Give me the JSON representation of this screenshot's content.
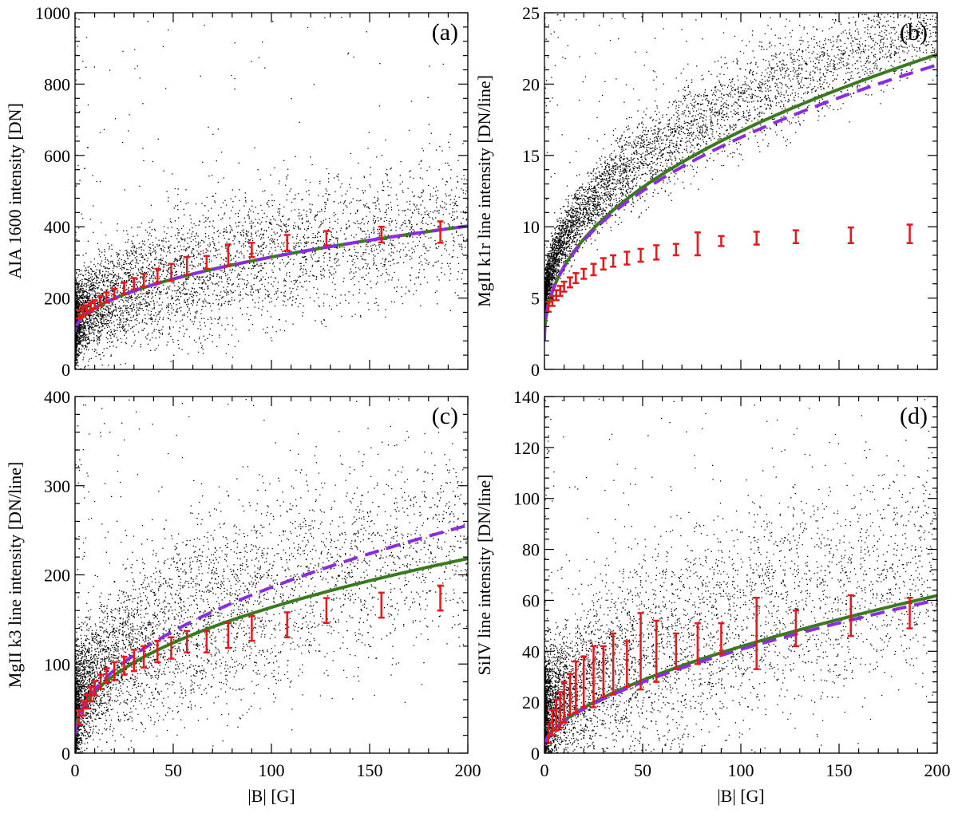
{
  "colors": {
    "points": "#000000",
    "fit_solid": "#3a7a1e",
    "fit_dashed": "#8b2be2",
    "errorbars": "#e8171b"
  },
  "chart_data": [
    {
      "panel": "(a)",
      "type": "scatter",
      "xlabel": "",
      "ylabel": "AIA 1600 intensity [DN]",
      "xlim": [
        0,
        200
      ],
      "ylim": [
        0,
        1000
      ],
      "xticks": [
        "0",
        "50",
        "100",
        "150",
        "200"
      ],
      "yticks": [
        "0",
        "200",
        "400",
        "600",
        "800",
        "1000"
      ],
      "scatter": {
        "y0": 115,
        "yspread": 140,
        "ymax": 1000
      },
      "fit_solid": {
        "a": 105,
        "b": 21,
        "p": 0.5
      },
      "fit_dashed": {
        "a": 105,
        "b": 21,
        "p": 0.5
      },
      "errorbars": [
        {
          "x": 2,
          "y": 155,
          "err": 12
        },
        {
          "x": 4,
          "y": 162,
          "err": 12
        },
        {
          "x": 6,
          "y": 168,
          "err": 12
        },
        {
          "x": 8,
          "y": 175,
          "err": 12
        },
        {
          "x": 10,
          "y": 182,
          "err": 12
        },
        {
          "x": 13,
          "y": 192,
          "err": 14
        },
        {
          "x": 16,
          "y": 202,
          "err": 14
        },
        {
          "x": 20,
          "y": 212,
          "err": 14
        },
        {
          "x": 25,
          "y": 228,
          "err": 16
        },
        {
          "x": 30,
          "y": 240,
          "err": 16
        },
        {
          "x": 35,
          "y": 250,
          "err": 18
        },
        {
          "x": 42,
          "y": 262,
          "err": 20
        },
        {
          "x": 49,
          "y": 272,
          "err": 24
        },
        {
          "x": 57,
          "y": 290,
          "err": 25
        },
        {
          "x": 67,
          "y": 300,
          "err": 18
        },
        {
          "x": 78,
          "y": 320,
          "err": 30
        },
        {
          "x": 90,
          "y": 335,
          "err": 20
        },
        {
          "x": 108,
          "y": 355,
          "err": 22
        },
        {
          "x": 128,
          "y": 368,
          "err": 20
        },
        {
          "x": 156,
          "y": 378,
          "err": 22
        },
        {
          "x": 186,
          "y": 385,
          "err": 30
        }
      ]
    },
    {
      "panel": "(b)",
      "type": "scatter",
      "xlabel": "",
      "ylabel": "MgII k1r line intensity [DN/line]",
      "xlim": [
        0,
        200
      ],
      "ylim": [
        0,
        25
      ],
      "xticks": [
        "0",
        "50",
        "100",
        "150",
        "200"
      ],
      "yticks": [
        "0",
        "5",
        "10",
        "15",
        "20",
        "25"
      ],
      "scatter": {
        "y0": 4.0,
        "yspread": 2.3,
        "ymax": 25
      },
      "fit_solid": {
        "a": 2.0,
        "b": 1.85,
        "p": 0.45
      },
      "fit_dashed": {
        "a": 2.0,
        "b": 1.88,
        "p": 0.44
      },
      "errorbars": [
        {
          "x": 2,
          "y": 4.4,
          "err": 0.35
        },
        {
          "x": 4,
          "y": 4.8,
          "err": 0.35
        },
        {
          "x": 6,
          "y": 5.2,
          "err": 0.35
        },
        {
          "x": 8,
          "y": 5.5,
          "err": 0.35
        },
        {
          "x": 10,
          "y": 5.8,
          "err": 0.35
        },
        {
          "x": 13,
          "y": 6.1,
          "err": 0.35
        },
        {
          "x": 16,
          "y": 6.4,
          "err": 0.35
        },
        {
          "x": 20,
          "y": 6.7,
          "err": 0.35
        },
        {
          "x": 25,
          "y": 7.0,
          "err": 0.4
        },
        {
          "x": 30,
          "y": 7.4,
          "err": 0.4
        },
        {
          "x": 35,
          "y": 7.6,
          "err": 0.4
        },
        {
          "x": 42,
          "y": 7.8,
          "err": 0.45
        },
        {
          "x": 49,
          "y": 8.0,
          "err": 0.45
        },
        {
          "x": 57,
          "y": 8.2,
          "err": 0.5
        },
        {
          "x": 67,
          "y": 8.4,
          "err": 0.4
        },
        {
          "x": 78,
          "y": 8.8,
          "err": 0.8
        },
        {
          "x": 90,
          "y": 9.0,
          "err": 0.35
        },
        {
          "x": 108,
          "y": 9.2,
          "err": 0.45
        },
        {
          "x": 128,
          "y": 9.3,
          "err": 0.45
        },
        {
          "x": 156,
          "y": 9.4,
          "err": 0.55
        },
        {
          "x": 186,
          "y": 9.5,
          "err": 0.65
        }
      ]
    },
    {
      "panel": "(c)",
      "type": "scatter",
      "xlabel": "|B| [G]",
      "ylabel": "MgII k3 line intensity [DN/line]",
      "xlim": [
        0,
        200
      ],
      "ylim": [
        0,
        400
      ],
      "xticks": [
        "0",
        "50",
        "100",
        "150",
        "200"
      ],
      "yticks": [
        "0",
        "100",
        "200",
        "300",
        "400"
      ],
      "scatter": {
        "y0": 35,
        "yspread": 80,
        "ymax": 400
      },
      "fit_solid": {
        "a": 18,
        "b": 17.5,
        "p": 0.46
      },
      "fit_dashed": {
        "a": 18,
        "b": 16.8,
        "p": 0.5
      },
      "errorbars": [
        {
          "x": 2,
          "y": 40,
          "err": 8
        },
        {
          "x": 4,
          "y": 50,
          "err": 8
        },
        {
          "x": 6,
          "y": 58,
          "err": 8
        },
        {
          "x": 8,
          "y": 66,
          "err": 8
        },
        {
          "x": 10,
          "y": 73,
          "err": 8
        },
        {
          "x": 13,
          "y": 80,
          "err": 8
        },
        {
          "x": 16,
          "y": 87,
          "err": 8
        },
        {
          "x": 20,
          "y": 92,
          "err": 10
        },
        {
          "x": 25,
          "y": 98,
          "err": 10
        },
        {
          "x": 30,
          "y": 104,
          "err": 12
        },
        {
          "x": 35,
          "y": 108,
          "err": 12
        },
        {
          "x": 42,
          "y": 114,
          "err": 12
        },
        {
          "x": 49,
          "y": 118,
          "err": 12
        },
        {
          "x": 57,
          "y": 125,
          "err": 12
        },
        {
          "x": 67,
          "y": 125,
          "err": 12
        },
        {
          "x": 78,
          "y": 132,
          "err": 14
        },
        {
          "x": 90,
          "y": 140,
          "err": 14
        },
        {
          "x": 108,
          "y": 144,
          "err": 14
        },
        {
          "x": 128,
          "y": 160,
          "err": 14
        },
        {
          "x": 156,
          "y": 166,
          "err": 14
        },
        {
          "x": 186,
          "y": 174,
          "err": 14
        }
      ]
    },
    {
      "panel": "(d)",
      "type": "scatter",
      "xlabel": "|B| [G]",
      "ylabel": "SiIV line intensity [DN/line]",
      "xlim": [
        0,
        200
      ],
      "ylim": [
        0,
        140
      ],
      "xticks": [
        "0",
        "50",
        "100",
        "150",
        "200"
      ],
      "yticks": [
        "0",
        "20",
        "40",
        "60",
        "80",
        "100",
        "120",
        "140"
      ],
      "scatter": {
        "y0": 14,
        "yspread": 30,
        "ymax": 140
      },
      "fit_solid": {
        "a": 3,
        "b": 2.45,
        "p": 0.6
      },
      "fit_dashed": {
        "a": 3,
        "b": 2.38,
        "p": 0.6
      },
      "errorbars": [
        {
          "x": 2,
          "y": 8,
          "err": 4
        },
        {
          "x": 4,
          "y": 12,
          "err": 5
        },
        {
          "x": 6,
          "y": 15,
          "err": 6
        },
        {
          "x": 8,
          "y": 17,
          "err": 7
        },
        {
          "x": 10,
          "y": 20,
          "err": 8
        },
        {
          "x": 13,
          "y": 23,
          "err": 8
        },
        {
          "x": 16,
          "y": 26,
          "err": 10
        },
        {
          "x": 20,
          "y": 28,
          "err": 10
        },
        {
          "x": 25,
          "y": 30,
          "err": 12
        },
        {
          "x": 30,
          "y": 32,
          "err": 10
        },
        {
          "x": 35,
          "y": 35,
          "err": 12
        },
        {
          "x": 42,
          "y": 35,
          "err": 9
        },
        {
          "x": 49,
          "y": 40,
          "err": 15
        },
        {
          "x": 57,
          "y": 40,
          "err": 12
        },
        {
          "x": 67,
          "y": 40,
          "err": 7
        },
        {
          "x": 78,
          "y": 43,
          "err": 8
        },
        {
          "x": 90,
          "y": 45,
          "err": 6
        },
        {
          "x": 108,
          "y": 47,
          "err": 14
        },
        {
          "x": 128,
          "y": 49,
          "err": 7
        },
        {
          "x": 156,
          "y": 54,
          "err": 8
        },
        {
          "x": 186,
          "y": 55,
          "err": 6
        }
      ]
    }
  ]
}
